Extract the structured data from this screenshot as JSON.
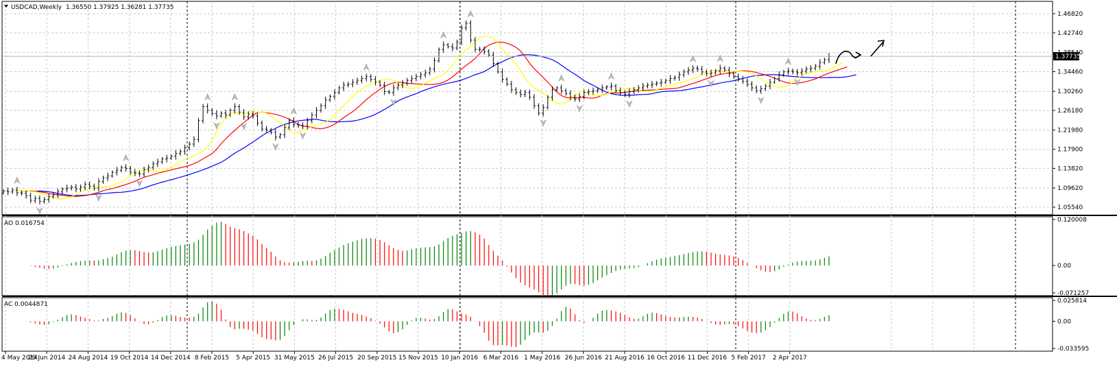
{
  "chart_data": [
    {
      "type": "ohlc",
      "header": {
        "symbol": "USDCAD,Weekly",
        "open": "1.36550",
        "high": "1.37925",
        "low": "1.36281",
        "close": "1.37735"
      },
      "y_ticks": [
        "1.46820",
        "1.42740",
        "1.38540",
        "1.34460",
        "1.30260",
        "1.26180",
        "1.21980",
        "1.17900",
        "1.13820",
        "1.09620",
        "1.05540"
      ],
      "ylim": [
        1.0554,
        1.4682
      ],
      "current_price_label": "1.37735",
      "x_ticks": [
        "4 May 2014",
        "29 Jun 2014",
        "24 Aug 2014",
        "19 Oct 2014",
        "14 Dec 2014",
        "8 Feb 2015",
        "5 Apr 2015",
        "31 May 2015",
        "26 Jul 2015",
        "20 Sep 2015",
        "15 Nov 2015",
        "10 Jan 2016",
        "6 Mar 2016",
        "1 May 2016",
        "26 Jun 2016",
        "21 Aug 2016",
        "16 Oct 2016",
        "11 Dec 2016",
        "5 Feb 2017",
        "2 Apr 2017"
      ],
      "close_series": [
        1.09,
        1.088,
        1.092,
        1.086,
        1.085,
        1.08,
        1.07,
        1.074,
        1.068,
        1.072,
        1.078,
        1.082,
        1.088,
        1.094,
        1.096,
        1.098,
        1.094,
        1.098,
        1.104,
        1.1,
        1.096,
        1.11,
        1.118,
        1.122,
        1.13,
        1.134,
        1.14,
        1.138,
        1.13,
        1.128,
        1.126,
        1.136,
        1.14,
        1.148,
        1.152,
        1.158,
        1.16,
        1.164,
        1.17,
        1.174,
        1.182,
        1.19,
        1.2,
        1.24,
        1.27,
        1.262,
        1.255,
        1.25,
        1.256,
        1.252,
        1.262,
        1.27,
        1.258,
        1.248,
        1.254,
        1.25,
        1.235,
        1.222,
        1.22,
        1.215,
        1.205,
        1.21,
        1.225,
        1.24,
        1.232,
        1.23,
        1.228,
        1.24,
        1.252,
        1.262,
        1.272,
        1.284,
        1.292,
        1.3,
        1.31,
        1.316,
        1.318,
        1.322,
        1.326,
        1.33,
        1.334,
        1.328,
        1.322,
        1.316,
        1.302,
        1.3,
        1.31,
        1.316,
        1.32,
        1.326,
        1.33,
        1.334,
        1.338,
        1.342,
        1.35,
        1.368,
        1.392,
        1.402,
        1.398,
        1.395,
        1.408,
        1.438,
        1.448,
        1.412,
        1.392,
        1.392,
        1.388,
        1.38,
        1.362,
        1.344,
        1.328,
        1.318,
        1.306,
        1.3,
        1.296,
        1.3,
        1.29,
        1.272,
        1.256,
        1.268,
        1.29,
        1.306,
        1.31,
        1.304,
        1.298,
        1.29,
        1.286,
        1.292,
        1.3,
        1.302,
        1.304,
        1.306,
        1.31,
        1.312,
        1.314,
        1.304,
        1.3,
        1.296,
        1.302,
        1.306,
        1.31,
        1.314,
        1.316,
        1.318,
        1.32,
        1.322,
        1.326,
        1.33,
        1.332,
        1.338,
        1.344,
        1.348,
        1.352,
        1.35,
        1.344,
        1.34,
        1.342,
        1.346,
        1.352,
        1.348,
        1.34,
        1.334,
        1.33,
        1.324,
        1.318,
        1.31,
        1.304,
        1.308,
        1.314,
        1.322,
        1.33,
        1.338,
        1.344,
        1.346,
        1.344,
        1.342,
        1.346,
        1.35,
        1.352,
        1.356,
        1.364,
        1.37,
        1.377
      ]
    },
    {
      "type": "bar",
      "name": "AO",
      "header": "AO 0.016754",
      "y_ticks": [
        "0.120008",
        "0.00",
        "-0.071257"
      ],
      "ylim": [
        -0.071257,
        0.120008
      ]
    },
    {
      "type": "bar",
      "name": "AC",
      "header": "AC 0.0044871",
      "y_ticks": [
        "0.025814",
        "0.00",
        "-0.033595"
      ],
      "ylim": [
        -0.033595,
        0.025814
      ]
    }
  ]
}
